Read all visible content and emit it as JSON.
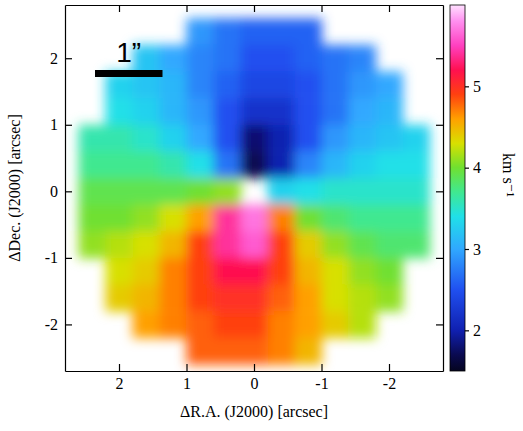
{
  "chart_data": {
    "type": "heatmap",
    "x": [
      2.4,
      2.0,
      1.6,
      1.2,
      0.8,
      0.4,
      0,
      -0.4,
      -0.8,
      -1.2,
      -1.6,
      -2.0,
      -2.4
    ],
    "y": [
      2.4,
      2.0,
      1.6,
      1.2,
      0.8,
      0.4,
      0,
      -0.4,
      -0.8,
      -1.2,
      -1.6,
      -2.0,
      -2.4
    ],
    "values": [
      [
        null,
        null,
        null,
        null,
        2.9,
        2.7,
        2.6,
        2.6,
        2.6,
        null,
        null,
        null,
        null
      ],
      [
        null,
        null,
        3.2,
        3.0,
        2.8,
        2.7,
        2.5,
        2.5,
        2.6,
        2.7,
        2.8,
        null,
        null
      ],
      [
        null,
        3.3,
        3.2,
        3.1,
        2.8,
        2.6,
        2.4,
        2.4,
        2.5,
        2.7,
        2.9,
        3.0,
        null
      ],
      [
        null,
        3.4,
        3.3,
        3.1,
        2.9,
        2.5,
        2.2,
        2.2,
        2.5,
        2.7,
        3.0,
        3.1,
        null
      ],
      [
        3.6,
        3.6,
        3.5,
        3.3,
        3.0,
        2.5,
        1.8,
        2.0,
        2.5,
        2.9,
        3.1,
        3.2,
        3.3
      ],
      [
        3.7,
        3.7,
        3.7,
        3.6,
        3.4,
        2.7,
        1.7,
        2.0,
        2.8,
        3.1,
        3.3,
        3.4,
        3.4
      ],
      [
        3.9,
        3.9,
        3.9,
        3.9,
        4.0,
        4.1,
        null,
        3.3,
        3.4,
        3.5,
        3.5,
        3.5,
        3.5
      ],
      [
        4.0,
        4.0,
        4.1,
        4.3,
        4.6,
        5.4,
        5.7,
        4.7,
        4.0,
        3.8,
        3.7,
        3.7,
        3.7
      ],
      [
        4.1,
        4.2,
        4.3,
        4.5,
        4.9,
        5.4,
        5.6,
        4.9,
        4.4,
        4.1,
        3.9,
        3.8,
        3.8
      ],
      [
        null,
        4.3,
        4.4,
        4.7,
        4.9,
        5.2,
        5.2,
        4.9,
        4.5,
        4.3,
        4.1,
        4.0,
        null
      ],
      [
        null,
        4.4,
        4.5,
        4.7,
        4.9,
        5.0,
        5.0,
        4.8,
        4.6,
        4.3,
        4.2,
        4.1,
        null
      ],
      [
        null,
        null,
        4.6,
        4.7,
        4.8,
        4.9,
        4.9,
        4.7,
        4.6,
        4.4,
        4.2,
        null,
        null
      ],
      [
        null,
        null,
        null,
        null,
        4.8,
        4.8,
        4.8,
        4.7,
        4.5,
        null,
        null,
        null,
        null
      ]
    ],
    "xlim": [
      2.8,
      -2.8
    ],
    "ylim": [
      -2.7,
      2.8
    ],
    "xticks": [
      2,
      1,
      0,
      -1,
      -2
    ],
    "yticks": [
      -2,
      -1,
      0,
      1,
      2
    ],
    "x_label": "ΔR.A. (J2000) [arcsec]",
    "y_label": "ΔDec. (J2000) [arcsec]",
    "colorbar": {
      "label": "km s⁻¹",
      "lim": [
        1.5,
        6.0
      ],
      "ticks": [
        2,
        3,
        4,
        5
      ]
    },
    "scale_bar": {
      "label": "1”",
      "length": 1
    }
  }
}
